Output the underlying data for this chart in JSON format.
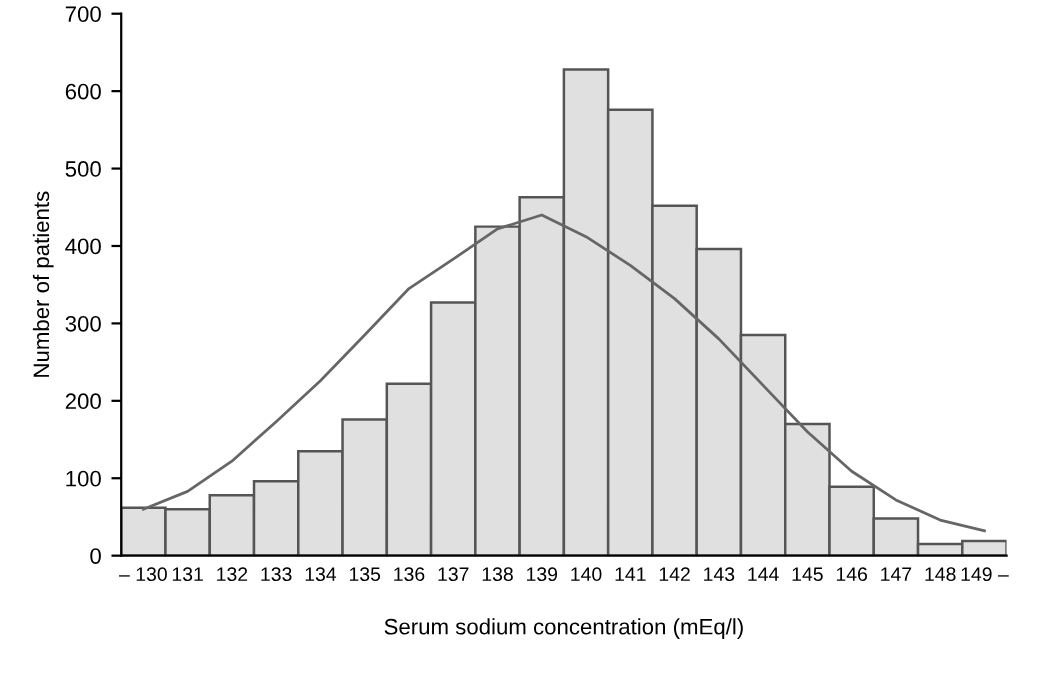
{
  "chart_data": {
    "type": "bar",
    "xlabel": "Serum sodium concentration (mEq/l)",
    "ylabel": "Number of patients",
    "categories": [
      "– 130",
      "131",
      "132",
      "133",
      "134",
      "135",
      "136",
      "137",
      "138",
      "139",
      "140",
      "141",
      "142",
      "143",
      "144",
      "145",
      "146",
      "147",
      "148",
      "149 –"
    ],
    "values": [
      62,
      60,
      78,
      96,
      135,
      176,
      222,
      327,
      425,
      463,
      628,
      576,
      452,
      396,
      285,
      170,
      89,
      48,
      15,
      19
    ],
    "color": "#e0e0e0",
    "series": [
      {
        "type": "line",
        "color": "#666666",
        "x": [
          "– 130",
          "131",
          "132",
          "133",
          "134",
          "135",
          "136",
          "137",
          "138",
          "139",
          "140",
          "141",
          "142",
          "143",
          "144",
          "145",
          "146",
          "147",
          "148",
          "149 –"
        ],
        "values": [
          60,
          83,
          122,
          173,
          226,
          285,
          345,
          383,
          422,
          440,
          412,
          375,
          332,
          280,
          220,
          160,
          109,
          72,
          46,
          32
        ]
      }
    ],
    "ylim": [
      0,
      700
    ],
    "yticks": [
      0,
      100,
      200,
      300,
      400,
      500,
      600,
      700
    ],
    "grid": false,
    "legend": false
  }
}
